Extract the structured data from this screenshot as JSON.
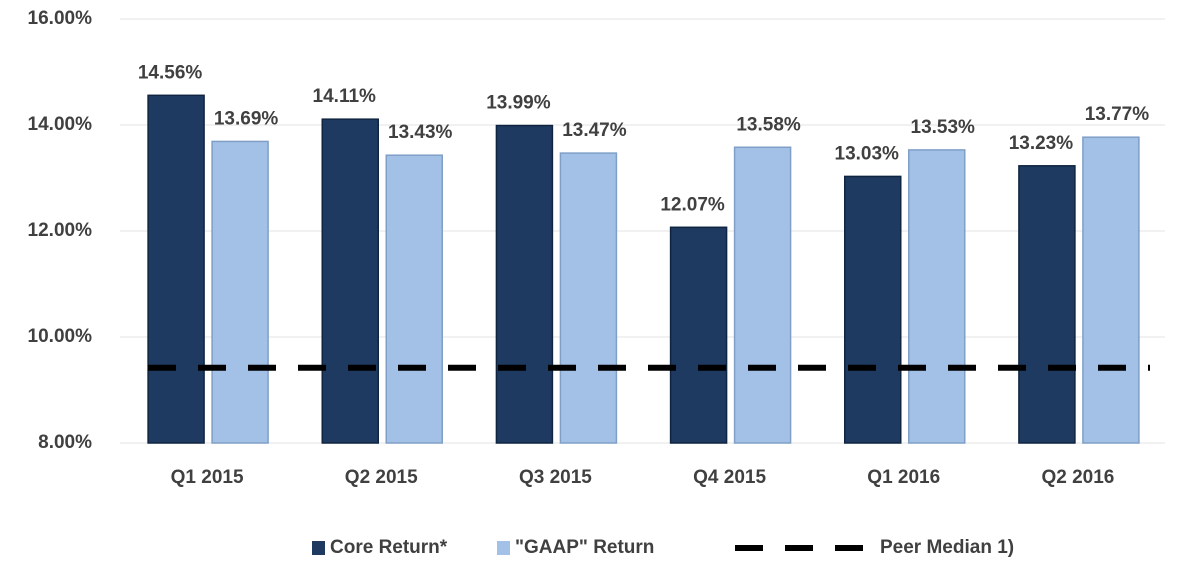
{
  "chart_data": {
    "type": "bar",
    "categories": [
      "Q1 2015",
      "Q2 2015",
      "Q3 2015",
      "Q4 2015",
      "Q1 2016",
      "Q2 2016"
    ],
    "series": [
      {
        "name": "Core Return*",
        "color": "#1f3a60",
        "values": [
          14.56,
          14.11,
          13.99,
          12.07,
          13.03,
          13.23
        ],
        "value_labels": [
          "14.56%",
          "14.11%",
          "13.99%",
          "12.07%",
          "13.03%",
          "13.23%"
        ]
      },
      {
        "name": "\"GAAP\" Return",
        "color": "#a3c1e6",
        "values": [
          13.69,
          13.43,
          13.47,
          13.58,
          13.53,
          13.77
        ],
        "value_labels": [
          "13.69%",
          "13.43%",
          "13.47%",
          "13.58%",
          "13.53%",
          "13.77%"
        ]
      }
    ],
    "reference_line": {
      "name": "Peer Median 1)",
      "value": 9.42,
      "color": "#000000"
    },
    "ylim": [
      8,
      16
    ],
    "yticks": [
      {
        "value": 8,
        "label": "8.00%"
      },
      {
        "value": 10,
        "label": "10.00%"
      },
      {
        "value": 12,
        "label": "12.00%"
      },
      {
        "value": 14,
        "label": "14.00%"
      },
      {
        "value": 16,
        "label": "16.00%"
      }
    ],
    "grid": true,
    "legend": "bottom"
  }
}
